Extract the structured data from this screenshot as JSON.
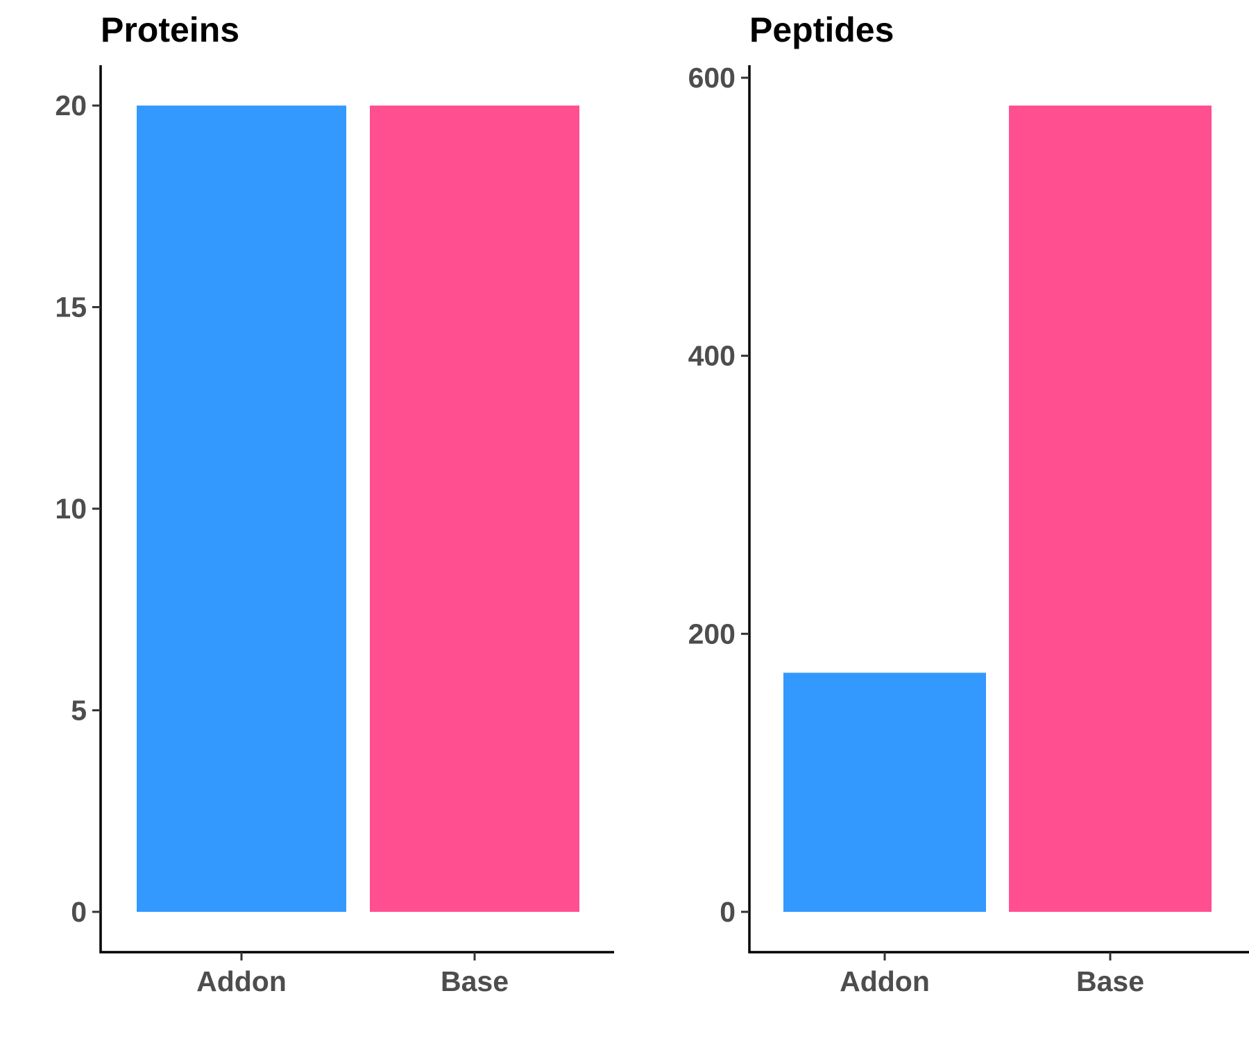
{
  "chart_data": [
    {
      "type": "bar",
      "title": "Proteins",
      "xlabel": "",
      "ylabel": "",
      "categories": [
        "Addon",
        "Base"
      ],
      "values": [
        20,
        20
      ],
      "colors": [
        "#3399ff",
        "#ff4f90"
      ],
      "ylim": [
        -1,
        21
      ],
      "yticks": [
        0,
        5,
        10,
        15,
        20
      ],
      "grid": false,
      "legend": "none"
    },
    {
      "type": "bar",
      "title": "Peptides",
      "xlabel": "",
      "ylabel": "",
      "categories": [
        "Addon",
        "Base"
      ],
      "values": [
        172,
        580
      ],
      "colors": [
        "#3399ff",
        "#ff4f90"
      ],
      "ylim": [
        -29,
        609
      ],
      "yticks": [
        0,
        200,
        400,
        600
      ],
      "grid": false,
      "legend": "none"
    }
  ]
}
